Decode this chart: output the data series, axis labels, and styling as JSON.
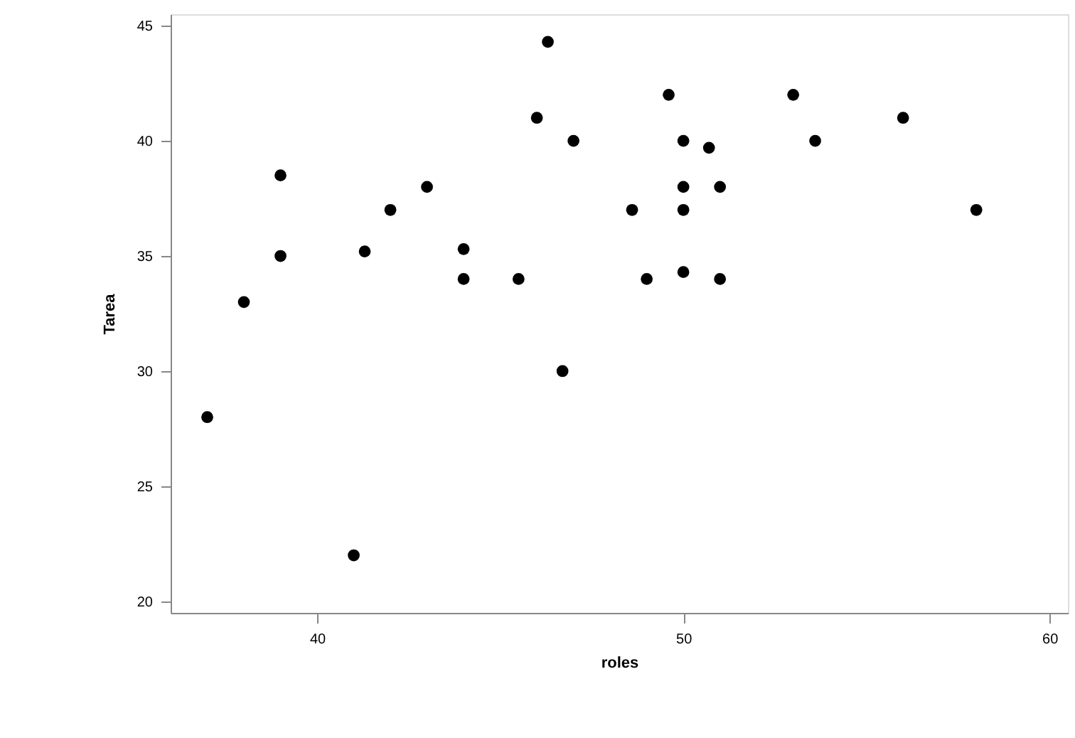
{
  "chart_data": {
    "type": "scatter",
    "xlabel": "roles",
    "ylabel": "Tarea",
    "marker": "circle",
    "grid": false,
    "legend": false,
    "xlim": [
      36.0,
      60.5
    ],
    "ylim": [
      19.5,
      45.5
    ],
    "xticks": [
      40,
      50,
      60
    ],
    "yticks": [
      20,
      25,
      30,
      35,
      40,
      45
    ],
    "series": [
      {
        "color": "#000000",
        "x": [
          37,
          38,
          39,
          39,
          41,
          41.3,
          42,
          43,
          44,
          44,
          45.5,
          46,
          46.3,
          46.7,
          47,
          48.6,
          49,
          49.6,
          50,
          50,
          50,
          50,
          50.7,
          51,
          51,
          53,
          53.6,
          56,
          58
        ],
        "values": [
          28,
          33,
          38.5,
          35,
          22,
          35.2,
          37,
          38,
          35.3,
          34,
          34,
          41,
          44.3,
          30,
          40,
          37,
          34,
          42,
          40,
          38,
          37,
          34.3,
          39.7,
          38,
          34,
          42,
          40,
          41,
          37
        ]
      }
    ]
  }
}
